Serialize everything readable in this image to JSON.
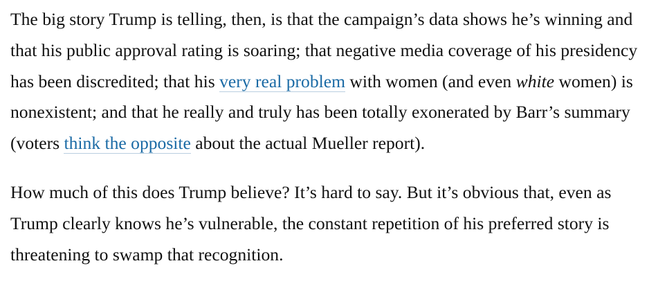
{
  "article": {
    "paragraph1": {
      "text1": "The big story Trump is telling, then, is that the campaign’s data shows he’s winning and that his public approval rating is soaring; that negative media coverage of his presidency has been discredited; that his ",
      "link1": "very real problem",
      "text2": " with women (and even ",
      "emphasis": "white",
      "text3": " women) is nonexistent; and that he really and truly has been totally exonerated by Barr’s summary (voters ",
      "link2": "think the opposite",
      "text4": " about the actual Mueller report)."
    },
    "paragraph2": {
      "text": "How much of this does Trump believe? It’s hard to say. But it’s obvious that, even as Trump clearly knows he’s vulnerable, the constant repetition of his preferred story is threatening to swamp that recognition."
    }
  }
}
